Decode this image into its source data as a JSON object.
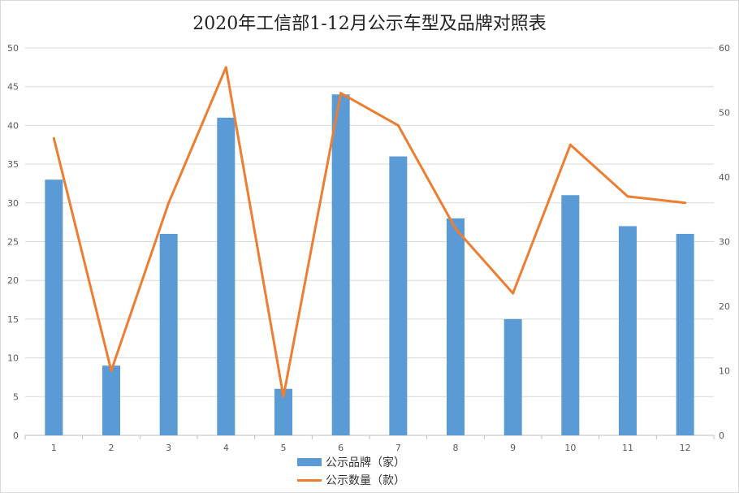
{
  "chart_data": {
    "type": "bar",
    "title": "2020年工信部1-12月公示车型及品牌对照表",
    "categories": [
      "1",
      "2",
      "3",
      "4",
      "5",
      "6",
      "7",
      "8",
      "9",
      "10",
      "11",
      "12"
    ],
    "series": [
      {
        "name": "公示品牌（家）",
        "type": "bar",
        "axis": "left",
        "color": "#5b9bd5",
        "values": [
          33,
          9,
          26,
          41,
          6,
          44,
          36,
          28,
          15,
          31,
          27,
          26
        ]
      },
      {
        "name": "公示数量（款）",
        "type": "line",
        "axis": "right",
        "color": "#ed7d31",
        "values": [
          46,
          10,
          36,
          57,
          6,
          53,
          48,
          32,
          22,
          45,
          37,
          36
        ]
      }
    ],
    "y_left": {
      "range": [
        0,
        50
      ],
      "ticks": [
        0,
        5,
        10,
        15,
        20,
        25,
        30,
        35,
        40,
        45,
        50
      ]
    },
    "y_right": {
      "range": [
        0,
        60
      ],
      "ticks": [
        0,
        10,
        20,
        30,
        40,
        50,
        60
      ]
    },
    "grid": true,
    "legend_position": "bottom"
  }
}
